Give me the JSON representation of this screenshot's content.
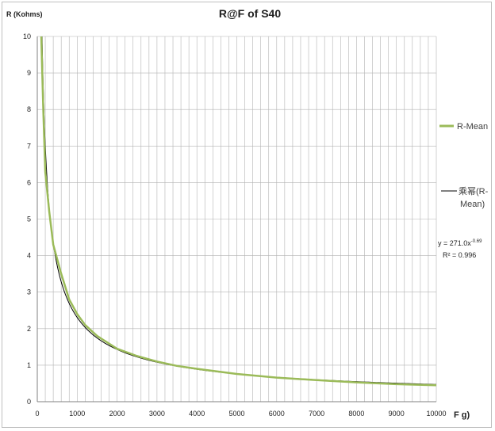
{
  "chart_data": {
    "type": "line",
    "title": "R@F of  S40",
    "ylabel": "R (Kohms)",
    "xlabel": "F g)",
    "xlim": [
      0,
      10000
    ],
    "ylim": [
      0,
      10
    ],
    "x_ticks": [
      "0",
      "1000",
      "2000",
      "3000",
      "4000",
      "5000",
      "6000",
      "7000",
      "8000",
      "9000",
      "10000"
    ],
    "y_ticks": [
      "0",
      "1",
      "2",
      "3",
      "4",
      "5",
      "6",
      "7",
      "8",
      "9",
      "10"
    ],
    "x_minor_step": 200,
    "grid": true,
    "legend_position": "right",
    "series": [
      {
        "name": "R-Mean",
        "color": "#9bbb59",
        "x": [
          100,
          150,
          200,
          300,
          400,
          500,
          600,
          800,
          1000,
          1200,
          1500,
          2000,
          2500,
          3000,
          3500,
          4000,
          5000,
          6000,
          7000,
          8000,
          9000,
          10000
        ],
        "y": [
          10.0,
          8.0,
          6.3,
          5.2,
          4.3,
          3.9,
          3.5,
          2.8,
          2.4,
          2.1,
          1.8,
          1.45,
          1.25,
          1.1,
          0.98,
          0.9,
          0.76,
          0.66,
          0.59,
          0.53,
          0.48,
          0.45
        ]
      },
      {
        "name": "乘幂(R-Mean)",
        "color": "#000000",
        "trendline": "power",
        "coefficient": 271.0,
        "exponent": -0.69
      }
    ],
    "annotations": {
      "equation_base": "y = 271.0x",
      "equation_exponent": "-0.69",
      "r_squared": "R² = 0.996"
    }
  }
}
